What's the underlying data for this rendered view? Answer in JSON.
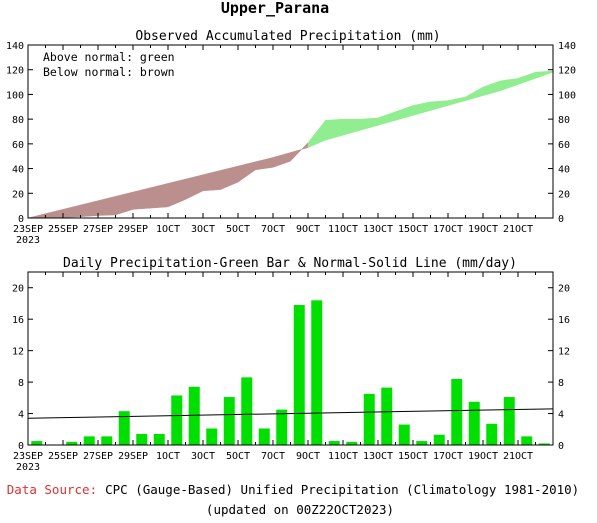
{
  "main_title": "Upper_Parana",
  "footer": {
    "source_label": "Data Source:",
    "source_text": "CPC (Gauge-Based) Unified Precipitation (Climatology 1981-2010)",
    "updated": "(updated on 00Z22OCT2023)"
  },
  "chart_data": [
    {
      "type": "area",
      "title": "Observed Accumulated Precipitation (mm)",
      "legend": [
        "Above normal: green",
        "Below normal: brown"
      ],
      "colors": {
        "above": "#90ee90",
        "below": "#bc8f8f"
      },
      "ylim": [
        0,
        140
      ],
      "yticks": [
        0,
        20,
        40,
        60,
        80,
        100,
        120,
        140
      ],
      "xlim": [
        1,
        31
      ],
      "x_tick_labels": [
        "23SEP",
        "25SEP",
        "27SEP",
        "29SEP",
        "1OCT",
        "3OCT",
        "5OCT",
        "7OCT",
        "9OCT",
        "11OCT",
        "13OCT",
        "15OCT",
        "17OCT",
        "19OCT",
        "21OCT"
      ],
      "x_tick_year": "2023",
      "days": [
        "23SEP",
        "24SEP",
        "25SEP",
        "26SEP",
        "27SEP",
        "28SEP",
        "29SEP",
        "30SEP",
        "1OCT",
        "2OCT",
        "3OCT",
        "4OCT",
        "5OCT",
        "6OCT",
        "7OCT",
        "8OCT",
        "9OCT",
        "10OCT",
        "11OCT",
        "12OCT",
        "13OCT",
        "14OCT",
        "15OCT",
        "16OCT",
        "17OCT",
        "18OCT",
        "19OCT",
        "20OCT",
        "21OCT",
        "22OCT"
      ],
      "observed": [
        0.5,
        0.5,
        1,
        2,
        2.5,
        7,
        8,
        9,
        15,
        22,
        23,
        29,
        39,
        41,
        46,
        61,
        79,
        80,
        80,
        81,
        86,
        91,
        94,
        95,
        98,
        106,
        111,
        113,
        118,
        119
      ],
      "normal": [
        3.5,
        7,
        10.5,
        14,
        17.5,
        21,
        24.5,
        28,
        31.5,
        35,
        38.5,
        42,
        45.5,
        49,
        53,
        57,
        63,
        67,
        71,
        75,
        79,
        83,
        87,
        91,
        95,
        99,
        103,
        108,
        113,
        118
      ]
    },
    {
      "type": "bar",
      "title": "Daily Precipitation-Green Bar & Normal-Solid Line (mm/day)",
      "bar_color": "#00e000",
      "ylim": [
        0,
        22
      ],
      "yticks": [
        0,
        4,
        8,
        12,
        16,
        20
      ],
      "xlim": [
        1,
        31
      ],
      "x_tick_labels": [
        "23SEP",
        "25SEP",
        "27SEP",
        "29SEP",
        "1OCT",
        "3OCT",
        "5OCT",
        "7OCT",
        "9OCT",
        "11OCT",
        "13OCT",
        "15OCT",
        "17OCT",
        "19OCT",
        "21OCT"
      ],
      "x_tick_year": "2023",
      "days": [
        "23SEP",
        "24SEP",
        "25SEP",
        "26SEP",
        "27SEP",
        "28SEP",
        "29SEP",
        "30SEP",
        "1OCT",
        "2OCT",
        "3OCT",
        "4OCT",
        "5OCT",
        "6OCT",
        "7OCT",
        "8OCT",
        "9OCT",
        "10OCT",
        "11OCT",
        "12OCT",
        "13OCT",
        "14OCT",
        "15OCT",
        "16OCT",
        "17OCT",
        "18OCT",
        "19OCT",
        "20OCT",
        "21OCT",
        "22OCT"
      ],
      "values": [
        0.5,
        0,
        0.4,
        1.1,
        1.1,
        4.3,
        1.4,
        1.4,
        6.3,
        7.4,
        2.1,
        6.1,
        8.6,
        2.1,
        4.5,
        17.8,
        18.4,
        0.5,
        0.4,
        6.5,
        7.3,
        2.6,
        0.5,
        1.3,
        8.4,
        5.5,
        2.7,
        6.1,
        1.1,
        0.2
      ],
      "normal_line": {
        "start": 3.4,
        "end": 4.6
      }
    }
  ]
}
